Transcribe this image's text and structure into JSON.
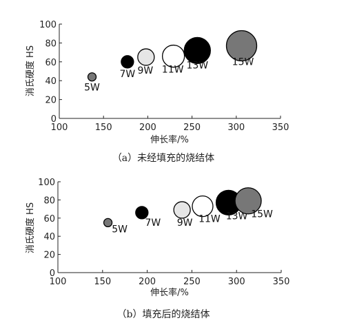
{
  "chart_data": [
    {
      "type": "scatter",
      "caption": "（a）未经填充的烧结体",
      "xlabel": "伸长率/%",
      "ylabel": "消氏硬度 HS",
      "xlim": [
        100,
        350
      ],
      "ylim": [
        0,
        100
      ],
      "xticks": [
        100,
        150,
        200,
        250,
        300,
        350
      ],
      "yticks": [
        0,
        20,
        40,
        60,
        80,
        100
      ],
      "points": [
        {
          "label": "5W",
          "x": 137,
          "y": 44,
          "fill": "#777777"
        },
        {
          "label": "7W",
          "x": 177,
          "y": 60,
          "fill": "#000000"
        },
        {
          "label": "9W",
          "x": 198,
          "y": 65,
          "fill": "#e6e6e6"
        },
        {
          "label": "11W",
          "x": 229,
          "y": 66,
          "fill": "#ffffff"
        },
        {
          "label": "13W",
          "x": 256,
          "y": 72,
          "fill": "#000000"
        },
        {
          "label": "15W",
          "x": 306,
          "y": 77,
          "fill": "#777777"
        }
      ]
    },
    {
      "type": "scatter",
      "caption": "（b）填充后的烧结体",
      "xlabel": "伸长率/%",
      "ylabel": "消氏硬度 HS",
      "xlim": [
        100,
        350
      ],
      "ylim": [
        0,
        100
      ],
      "xticks": [
        100,
        150,
        200,
        250,
        300,
        350
      ],
      "yticks": [
        0,
        20,
        40,
        60,
        80,
        100
      ],
      "points": [
        {
          "label": "5W",
          "x": 156,
          "y": 55,
          "fill": "#777777"
        },
        {
          "label": "7W",
          "x": 194,
          "y": 66,
          "fill": "#000000"
        },
        {
          "label": "9W",
          "x": 239,
          "y": 69,
          "fill": "#e6e6e6"
        },
        {
          "label": "11W",
          "x": 262,
          "y": 73,
          "fill": "#ffffff"
        },
        {
          "label": "13W",
          "x": 291,
          "y": 77,
          "fill": "#000000"
        },
        {
          "label": "15W",
          "x": 313,
          "y": 79,
          "fill": "#777777"
        }
      ]
    }
  ]
}
